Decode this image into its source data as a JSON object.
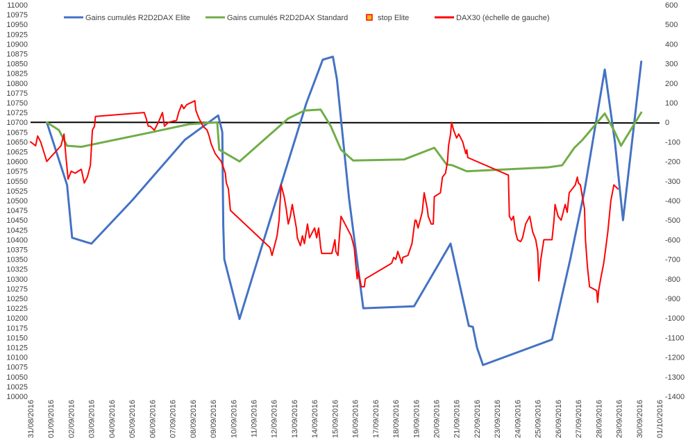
{
  "chart_data": {
    "type": "line",
    "title": "",
    "legend": {
      "placement": "top",
      "entries": [
        {
          "label": "Gains cumulés R2D2DAX Elite",
          "color": "#4472C4",
          "kind": "line"
        },
        {
          "label": "Gains cumulés R2D2DAX Standard",
          "color": "#70AD47",
          "kind": "line"
        },
        {
          "label": "stop Elite",
          "color": "#FF0000",
          "fill": "#FFC000",
          "kind": "marker"
        },
        {
          "label": "DAX30 (échelle de gauche)",
          "color": "#FF0000",
          "kind": "line"
        }
      ]
    },
    "x_tick_labels": [
      "31/08/2016",
      "01/09/2016",
      "02/09/2016",
      "03/09/2016",
      "04/09/2016",
      "05/09/2016",
      "06/09/2016",
      "07/09/2016",
      "08/09/2016",
      "09/09/2016",
      "10/09/2016",
      "11/09/2016",
      "12/09/2016",
      "13/09/2016",
      "14/09/2016",
      "15/09/2016",
      "16/09/2016",
      "17/09/2016",
      "18/09/2016",
      "19/09/2016",
      "20/09/2016",
      "21/09/2016",
      "22/09/2016",
      "23/09/2016",
      "24/09/2016",
      "25/09/2016",
      "26/09/2016",
      "27/09/2016",
      "28/09/2016",
      "29/09/2016",
      "30/09/2016",
      "01/10/2016"
    ],
    "x_range": [
      0,
      31
    ],
    "y_left": {
      "min": 10000,
      "max": 11000,
      "step": 25
    },
    "y_right": {
      "min": -1400,
      "max": 600,
      "step": 100,
      "zero_line_color": "#000000"
    },
    "gridlines": false,
    "series": [
      {
        "name": "Gains cumulés R2D2DAX Elite",
        "axis": "right",
        "color": "#4472C4",
        "points": [
          [
            0.8,
            0
          ],
          [
            1.8,
            -320
          ],
          [
            2.05,
            -590
          ],
          [
            3.0,
            -620
          ],
          [
            5.0,
            -400
          ],
          [
            7.6,
            -90
          ],
          [
            9.25,
            35
          ],
          [
            9.45,
            -50
          ],
          [
            9.5,
            -530
          ],
          [
            9.55,
            -700
          ],
          [
            10.3,
            -1005
          ],
          [
            11.5,
            -600
          ],
          [
            13.6,
            100
          ],
          [
            14.4,
            320
          ],
          [
            14.9,
            335
          ],
          [
            15.1,
            220
          ],
          [
            15.7,
            -390
          ],
          [
            16.4,
            -950
          ],
          [
            18.9,
            -940
          ],
          [
            20.7,
            -620
          ],
          [
            21.6,
            -1040
          ],
          [
            21.8,
            -1045
          ],
          [
            22.0,
            -1150
          ],
          [
            22.3,
            -1240
          ],
          [
            25.7,
            -1110
          ],
          [
            26.6,
            -700
          ],
          [
            27.3,
            -350
          ],
          [
            28.3,
            270
          ],
          [
            28.8,
            -100
          ],
          [
            29.2,
            -500
          ],
          [
            30.1,
            310
          ]
        ]
      },
      {
        "name": "Gains cumulés R2D2DAX Standard",
        "axis": "right",
        "color": "#70AD47",
        "points": [
          [
            0.8,
            0
          ],
          [
            1.4,
            -40
          ],
          [
            1.8,
            -120
          ],
          [
            2.5,
            -125
          ],
          [
            6.0,
            -50
          ],
          [
            7.8,
            -10
          ],
          [
            9.2,
            0
          ],
          [
            9.3,
            -140
          ],
          [
            10.3,
            -200
          ],
          [
            12.7,
            20
          ],
          [
            13.5,
            60
          ],
          [
            14.3,
            65
          ],
          [
            14.8,
            -20
          ],
          [
            15.3,
            -140
          ],
          [
            15.9,
            -195
          ],
          [
            18.4,
            -190
          ],
          [
            19.9,
            -130
          ],
          [
            20.5,
            -215
          ],
          [
            20.8,
            -220
          ],
          [
            21.5,
            -250
          ],
          [
            25.5,
            -230
          ],
          [
            26.2,
            -220
          ],
          [
            26.8,
            -130
          ],
          [
            27.2,
            -90
          ],
          [
            28.3,
            45
          ],
          [
            28.8,
            -50
          ],
          [
            29.1,
            -120
          ],
          [
            30.1,
            50
          ]
        ]
      },
      {
        "name": "DAX30 (échelle de gauche)",
        "axis": "left",
        "color": "#FF0000",
        "points": [
          [
            0,
            10650
          ],
          [
            0.25,
            10640
          ],
          [
            0.35,
            10665
          ],
          [
            0.5,
            10650
          ],
          [
            0.65,
            10625
          ],
          [
            0.8,
            10600
          ],
          [
            1.5,
            10640
          ],
          [
            1.65,
            10670
          ],
          [
            1.75,
            10610
          ],
          [
            1.85,
            10555
          ],
          [
            2.0,
            10575
          ],
          [
            2.2,
            10570
          ],
          [
            2.5,
            10580
          ],
          [
            2.65,
            10545
          ],
          [
            2.8,
            10560
          ],
          [
            2.95,
            10590
          ],
          [
            3.05,
            10680
          ],
          [
            3.15,
            10690
          ],
          [
            3.2,
            10715
          ],
          [
            5.6,
            10725
          ],
          [
            5.7,
            10710
          ],
          [
            5.8,
            10690
          ],
          [
            5.9,
            10690
          ],
          [
            6.1,
            10680
          ],
          [
            6.3,
            10700
          ],
          [
            6.5,
            10725
          ],
          [
            6.6,
            10690
          ],
          [
            6.8,
            10700
          ],
          [
            7.2,
            10705
          ],
          [
            7.3,
            10725
          ],
          [
            7.45,
            10745
          ],
          [
            7.55,
            10735
          ],
          [
            7.7,
            10745
          ],
          [
            8.1,
            10755
          ],
          [
            8.15,
            10730
          ],
          [
            8.3,
            10710
          ],
          [
            8.5,
            10690
          ],
          [
            8.7,
            10680
          ],
          [
            8.8,
            10665
          ],
          [
            8.9,
            10645
          ],
          [
            9.1,
            10620
          ],
          [
            9.25,
            10610
          ],
          [
            9.4,
            10600
          ],
          [
            9.6,
            10570
          ],
          [
            9.65,
            10545
          ],
          [
            9.75,
            10530
          ],
          [
            9.85,
            10475
          ],
          [
            11.8,
            10380
          ],
          [
            11.9,
            10360
          ],
          [
            12.0,
            10380
          ],
          [
            12.15,
            10410
          ],
          [
            12.25,
            10450
          ],
          [
            12.35,
            10540
          ],
          [
            12.5,
            10510
          ],
          [
            12.6,
            10480
          ],
          [
            12.7,
            10440
          ],
          [
            12.8,
            10460
          ],
          [
            12.9,
            10490
          ],
          [
            13.0,
            10460
          ],
          [
            13.1,
            10430
          ],
          [
            13.15,
            10405
          ],
          [
            13.3,
            10385
          ],
          [
            13.4,
            10410
          ],
          [
            13.5,
            10390
          ],
          [
            13.65,
            10440
          ],
          [
            13.75,
            10405
          ],
          [
            13.9,
            10420
          ],
          [
            14.0,
            10430
          ],
          [
            14.1,
            10405
          ],
          [
            14.2,
            10430
          ],
          [
            14.3,
            10380
          ],
          [
            14.35,
            10365
          ],
          [
            14.85,
            10365
          ],
          [
            15.0,
            10400
          ],
          [
            15.05,
            10370
          ],
          [
            15.15,
            10360
          ],
          [
            15.3,
            10460
          ],
          [
            15.5,
            10440
          ],
          [
            15.8,
            10410
          ],
          [
            15.95,
            10380
          ],
          [
            16.1,
            10300
          ],
          [
            16.15,
            10320
          ],
          [
            16.3,
            10280
          ],
          [
            16.45,
            10280
          ],
          [
            16.5,
            10300
          ],
          [
            17.8,
            10340
          ],
          [
            17.9,
            10355
          ],
          [
            18.0,
            10350
          ],
          [
            18.1,
            10370
          ],
          [
            18.3,
            10340
          ],
          [
            18.35,
            10355
          ],
          [
            18.6,
            10360
          ],
          [
            18.8,
            10390
          ],
          [
            18.95,
            10450
          ],
          [
            19.0,
            10450
          ],
          [
            19.1,
            10430
          ],
          [
            19.3,
            10470
          ],
          [
            19.4,
            10520
          ],
          [
            19.55,
            10480
          ],
          [
            19.6,
            10460
          ],
          [
            19.75,
            10440
          ],
          [
            19.85,
            10440
          ],
          [
            19.9,
            10510
          ],
          [
            20.2,
            10520
          ],
          [
            20.3,
            10560
          ],
          [
            20.45,
            10570
          ],
          [
            20.55,
            10600
          ],
          [
            20.6,
            10640
          ],
          [
            20.7,
            10670
          ],
          [
            20.75,
            10700
          ],
          [
            20.85,
            10680
          ],
          [
            21.0,
            10660
          ],
          [
            21.1,
            10670
          ],
          [
            21.3,
            10650
          ],
          [
            21.45,
            10620
          ],
          [
            21.5,
            10630
          ],
          [
            21.55,
            10610
          ],
          [
            23.55,
            10565
          ],
          [
            23.6,
            10460
          ],
          [
            23.7,
            10450
          ],
          [
            23.8,
            10460
          ],
          [
            23.9,
            10420
          ],
          [
            24.0,
            10400
          ],
          [
            24.15,
            10395
          ],
          [
            24.25,
            10405
          ],
          [
            24.4,
            10440
          ],
          [
            24.5,
            10450
          ],
          [
            24.6,
            10460
          ],
          [
            24.75,
            10420
          ],
          [
            24.9,
            10400
          ],
          [
            25.0,
            10370
          ],
          [
            25.05,
            10295
          ],
          [
            25.15,
            10350
          ],
          [
            25.3,
            10400
          ],
          [
            25.7,
            10400
          ],
          [
            25.8,
            10450
          ],
          [
            25.85,
            10490
          ],
          [
            26.0,
            10460
          ],
          [
            26.15,
            10450
          ],
          [
            26.35,
            10490
          ],
          [
            26.45,
            10470
          ],
          [
            26.55,
            10520
          ],
          [
            26.85,
            10540
          ],
          [
            26.95,
            10560
          ],
          [
            27.0,
            10545
          ],
          [
            27.1,
            10540
          ],
          [
            27.2,
            10510
          ],
          [
            27.3,
            10480
          ],
          [
            27.35,
            10400
          ],
          [
            27.45,
            10330
          ],
          [
            27.55,
            10280
          ],
          [
            27.9,
            10270
          ],
          [
            27.95,
            10240
          ],
          [
            28.0,
            10270
          ],
          [
            28.1,
            10300
          ],
          [
            28.25,
            10340
          ],
          [
            28.35,
            10380
          ],
          [
            28.45,
            10420
          ],
          [
            28.6,
            10500
          ],
          [
            28.75,
            10540
          ],
          [
            28.85,
            10535
          ],
          [
            28.95,
            10530
          ]
        ]
      }
    ]
  }
}
